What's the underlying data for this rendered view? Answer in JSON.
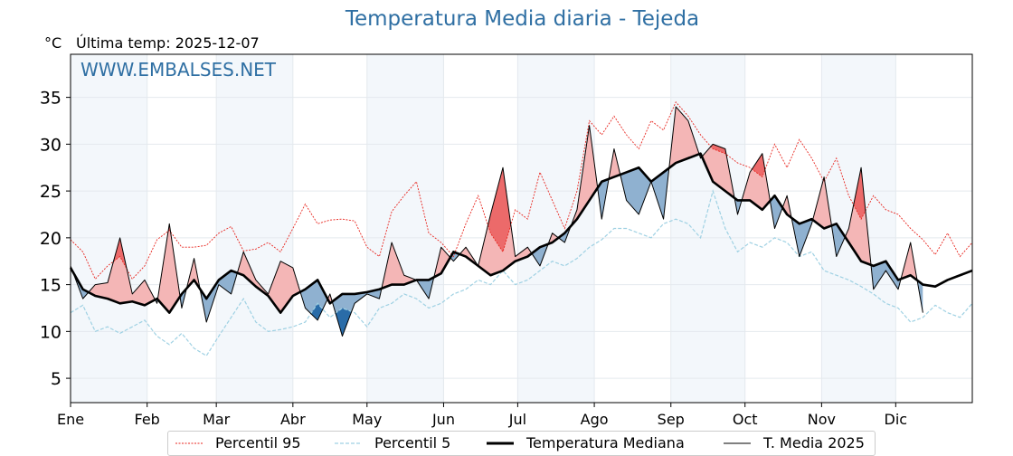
{
  "header": {
    "title": "Temperatura Media diaria - Tejeda",
    "unit": "°C",
    "last_temp": "Última temp: 2025-12-07",
    "watermark": "WWW.EMBALSES.NET"
  },
  "colors": {
    "title": "#2f6fa3",
    "p95": "#e8261f",
    "p5": "#9fd1e3",
    "median": "#000000",
    "t2025": "#000000",
    "above_median_fill": "#f4b6b6",
    "above_p95_fill": "#ec6a6a",
    "below_median_fill": "#8fb1d0",
    "below_p5_fill": "#2a6ca8",
    "month_band": "#f3f7fb"
  },
  "chart_data": {
    "type": "line",
    "title": "Temperatura Media diaria - Tejeda",
    "xlabel": "",
    "ylabel": "°C",
    "ylim": [
      2.4,
      39.6
    ],
    "xlim_days": [
      0,
      365
    ],
    "yticks": [
      5,
      10,
      15,
      20,
      25,
      30,
      35
    ],
    "grid": true,
    "legend_position": "bottom-center",
    "month_ticks": [
      {
        "label": "Ene",
        "day": 0
      },
      {
        "label": "Feb",
        "day": 31
      },
      {
        "label": "Mar",
        "day": 59
      },
      {
        "label": "Abr",
        "day": 90
      },
      {
        "label": "May",
        "day": 120
      },
      {
        "label": "Jun",
        "day": 151
      },
      {
        "label": "Jul",
        "day": 181
      },
      {
        "label": "Ago",
        "day": 212
      },
      {
        "label": "Sep",
        "day": 243
      },
      {
        "label": "Oct",
        "day": 273
      },
      {
        "label": "Nov",
        "day": 304
      },
      {
        "label": "Dic",
        "day": 334
      }
    ],
    "shaded_months": [
      "Ene",
      "Mar",
      "May",
      "Jul",
      "Sep",
      "Nov"
    ],
    "x_step_days": 5,
    "series": [
      {
        "name": "Percentil 95",
        "style": "dotted-red",
        "values": [
          19.8,
          18.5,
          15.6,
          17.0,
          18.0,
          15.6,
          17.0,
          19.8,
          20.8,
          19.0,
          19.0,
          19.2,
          20.5,
          21.2,
          18.6,
          18.8,
          19.5,
          18.5,
          21.0,
          23.6,
          21.5,
          21.9,
          22.0,
          21.8,
          19.0,
          18.0,
          22.8,
          24.5,
          26.0,
          20.5,
          19.5,
          18.0,
          21.5,
          24.5,
          20.5,
          18.5,
          23.0,
          22.0,
          27.0,
          24.0,
          21.0,
          25.0,
          32.5,
          31.0,
          33.0,
          31.0,
          29.5,
          32.5,
          31.5,
          34.5,
          33.0,
          31.0,
          29.5,
          29.0,
          28.0,
          27.5,
          26.5,
          30.0,
          27.5,
          30.5,
          28.5,
          26.0,
          28.5,
          24.5,
          22.0,
          24.5,
          23.0,
          22.5,
          21.0,
          19.8,
          18.2,
          20.5,
          18.0,
          19.5
        ]
      },
      {
        "name": "Percentil 5",
        "style": "dashed-lightblue",
        "values": [
          12.0,
          12.8,
          10.0,
          10.5,
          9.8,
          10.5,
          11.2,
          9.5,
          8.6,
          9.8,
          8.2,
          7.4,
          9.5,
          11.5,
          13.5,
          11.0,
          10.0,
          10.2,
          10.5,
          11.0,
          13.0,
          11.5,
          12.5,
          12.0,
          10.5,
          12.5,
          13.0,
          14.0,
          13.5,
          12.5,
          13.0,
          14.0,
          14.5,
          15.5,
          15.0,
          16.5,
          15.0,
          15.5,
          16.5,
          17.5,
          17.0,
          17.8,
          19.0,
          19.8,
          21.0,
          21.0,
          20.5,
          20.0,
          21.5,
          22.0,
          21.5,
          20.0,
          25.0,
          21.0,
          18.5,
          19.5,
          19.0,
          20.0,
          19.5,
          18.0,
          18.5,
          16.5,
          16.0,
          15.5,
          14.8,
          14.0,
          13.0,
          12.5,
          11.0,
          11.5,
          12.8,
          12.0,
          11.5,
          13.0
        ]
      },
      {
        "name": "Temperatura Mediana",
        "style": "thick-black",
        "values": [
          16.8,
          14.5,
          13.8,
          13.5,
          13.0,
          13.2,
          12.8,
          13.5,
          12.0,
          14.0,
          15.5,
          13.5,
          15.5,
          16.5,
          16.0,
          14.8,
          13.8,
          12.0,
          13.8,
          14.5,
          15.5,
          13.0,
          14.0,
          14.0,
          14.2,
          14.5,
          15.0,
          15.0,
          15.5,
          15.5,
          16.2,
          18.5,
          18.0,
          17.0,
          16.0,
          16.5,
          17.5,
          18.0,
          19.0,
          19.5,
          20.5,
          22.0,
          24.0,
          26.0,
          26.5,
          27.0,
          27.5,
          26.0,
          27.0,
          28.0,
          28.5,
          29.0,
          26.0,
          25.0,
          24.0,
          24.0,
          23.0,
          24.5,
          22.5,
          21.5,
          22.0,
          21.0,
          21.5,
          19.5,
          17.5,
          17.0,
          17.5,
          15.5,
          16.0,
          15.0,
          14.8,
          15.5,
          16.0,
          16.5
        ]
      },
      {
        "name": "T. Media 2025",
        "style": "thin-black",
        "values": [
          17.0,
          13.5,
          15.0,
          15.2,
          20.0,
          14.0,
          15.5,
          13.0,
          21.5,
          12.5,
          17.8,
          11.0,
          15.0,
          14.0,
          18.5,
          15.5,
          14.0,
          17.5,
          16.8,
          12.5,
          11.2,
          14.0,
          9.5,
          13.0,
          14.0,
          13.5,
          19.5,
          16.0,
          15.5,
          13.5,
          19.0,
          17.5,
          19.0,
          17.0,
          22.5,
          27.5,
          18.0,
          19.0,
          17.0,
          20.5,
          19.5,
          23.0,
          32.0,
          22.0,
          29.5,
          24.0,
          22.5,
          26.0,
          22.0,
          34.0,
          32.5,
          28.5,
          30.0,
          29.5,
          22.5,
          27.0,
          29.0,
          21.0,
          24.5,
          18.0,
          21.5,
          26.5,
          18.0,
          21.0,
          27.5,
          14.5,
          16.5,
          14.5,
          19.5,
          12.0
        ]
      }
    ]
  },
  "legend": {
    "items": [
      {
        "label": "Percentil 95"
      },
      {
        "label": "Percentil 5"
      },
      {
        "label": "Temperatura Mediana"
      },
      {
        "label": "T. Media 2025"
      }
    ]
  }
}
